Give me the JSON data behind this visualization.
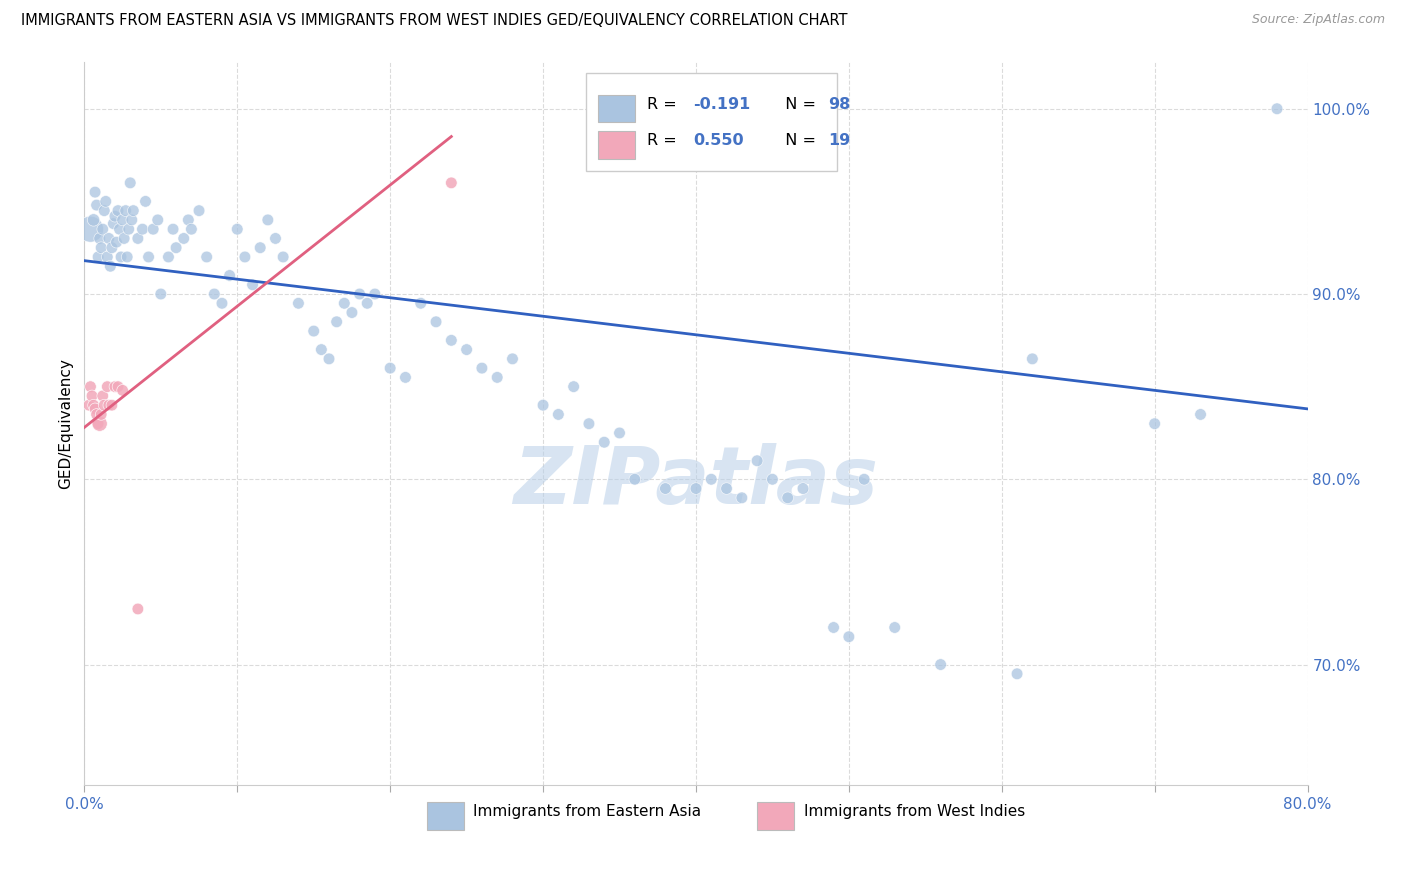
{
  "title": "IMMIGRANTS FROM EASTERN ASIA VS IMMIGRANTS FROM WEST INDIES GED/EQUIVALENCY CORRELATION CHART",
  "source": "Source: ZipAtlas.com",
  "ylabel": "GED/Equivalency",
  "x_min": 0.0,
  "x_max": 0.8,
  "y_min": 0.635,
  "y_max": 1.025,
  "y_ticks": [
    0.7,
    0.8,
    0.9,
    1.0
  ],
  "y_tick_labels": [
    "70.0%",
    "80.0%",
    "90.0%",
    "100.0%"
  ],
  "x_tick_labels_show": [
    "0.0%",
    "80.0%"
  ],
  "legend_r1": "-0.191",
  "legend_n1": "98",
  "legend_r2": "0.550",
  "legend_n2": "19",
  "legend1_label": "Immigrants from Eastern Asia",
  "legend2_label": "Immigrants from West Indies",
  "blue_color": "#aac4e0",
  "pink_color": "#f2a8ba",
  "trend_blue": "#3060c0",
  "trend_pink": "#e06080",
  "watermark": "ZIPatlas",
  "blue_trend_x": [
    0.0,
    0.8
  ],
  "blue_trend_y": [
    0.918,
    0.838
  ],
  "pink_trend_x": [
    0.0,
    0.24
  ],
  "pink_trend_y": [
    0.828,
    0.985
  ],
  "eastern_asia_x": [
    0.004,
    0.006,
    0.007,
    0.008,
    0.009,
    0.01,
    0.011,
    0.012,
    0.013,
    0.014,
    0.015,
    0.016,
    0.017,
    0.018,
    0.019,
    0.02,
    0.021,
    0.022,
    0.023,
    0.024,
    0.025,
    0.026,
    0.027,
    0.028,
    0.029,
    0.03,
    0.031,
    0.032,
    0.035,
    0.038,
    0.04,
    0.042,
    0.045,
    0.048,
    0.05,
    0.055,
    0.058,
    0.06,
    0.065,
    0.068,
    0.07,
    0.075,
    0.08,
    0.085,
    0.09,
    0.095,
    0.1,
    0.105,
    0.11,
    0.115,
    0.12,
    0.125,
    0.13,
    0.14,
    0.15,
    0.155,
    0.16,
    0.165,
    0.17,
    0.175,
    0.18,
    0.185,
    0.19,
    0.2,
    0.21,
    0.22,
    0.23,
    0.24,
    0.25,
    0.26,
    0.27,
    0.28,
    0.3,
    0.31,
    0.32,
    0.33,
    0.34,
    0.35,
    0.36,
    0.38,
    0.4,
    0.41,
    0.42,
    0.43,
    0.44,
    0.45,
    0.46,
    0.47,
    0.49,
    0.5,
    0.51,
    0.53,
    0.56,
    0.61,
    0.62,
    0.7,
    0.73,
    0.78
  ],
  "eastern_asia_y": [
    0.935,
    0.94,
    0.955,
    0.948,
    0.92,
    0.93,
    0.925,
    0.935,
    0.945,
    0.95,
    0.92,
    0.93,
    0.915,
    0.925,
    0.938,
    0.942,
    0.928,
    0.945,
    0.935,
    0.92,
    0.94,
    0.93,
    0.945,
    0.92,
    0.935,
    0.96,
    0.94,
    0.945,
    0.93,
    0.935,
    0.95,
    0.92,
    0.935,
    0.94,
    0.9,
    0.92,
    0.935,
    0.925,
    0.93,
    0.94,
    0.935,
    0.945,
    0.92,
    0.9,
    0.895,
    0.91,
    0.935,
    0.92,
    0.905,
    0.925,
    0.94,
    0.93,
    0.92,
    0.895,
    0.88,
    0.87,
    0.865,
    0.885,
    0.895,
    0.89,
    0.9,
    0.895,
    0.9,
    0.86,
    0.855,
    0.895,
    0.885,
    0.875,
    0.87,
    0.86,
    0.855,
    0.865,
    0.84,
    0.835,
    0.85,
    0.83,
    0.82,
    0.825,
    0.8,
    0.795,
    0.795,
    0.8,
    0.795,
    0.79,
    0.81,
    0.8,
    0.79,
    0.795,
    0.72,
    0.715,
    0.8,
    0.72,
    0.7,
    0.695,
    0.865,
    0.83,
    0.835,
    1.0
  ],
  "eastern_asia_s": [
    350,
    80,
    70,
    70,
    70,
    70,
    70,
    70,
    70,
    70,
    70,
    70,
    70,
    70,
    70,
    70,
    70,
    70,
    70,
    70,
    70,
    70,
    70,
    70,
    70,
    70,
    70,
    70,
    70,
    70,
    70,
    70,
    70,
    70,
    70,
    70,
    70,
    70,
    70,
    70,
    70,
    70,
    70,
    70,
    70,
    70,
    70,
    70,
    70,
    70,
    70,
    70,
    70,
    70,
    70,
    70,
    70,
    70,
    70,
    70,
    70,
    70,
    70,
    70,
    70,
    70,
    70,
    70,
    70,
    70,
    70,
    70,
    70,
    70,
    70,
    70,
    70,
    70,
    70,
    70,
    70,
    70,
    70,
    70,
    70,
    70,
    70,
    70,
    70,
    70,
    70,
    70,
    70,
    70,
    70,
    70,
    70,
    70
  ],
  "west_indies_x": [
    0.003,
    0.004,
    0.005,
    0.006,
    0.007,
    0.008,
    0.009,
    0.01,
    0.011,
    0.012,
    0.013,
    0.015,
    0.016,
    0.018,
    0.02,
    0.022,
    0.025,
    0.035,
    0.24
  ],
  "west_indies_y": [
    0.84,
    0.85,
    0.845,
    0.84,
    0.838,
    0.835,
    0.83,
    0.83,
    0.835,
    0.845,
    0.84,
    0.85,
    0.84,
    0.84,
    0.85,
    0.85,
    0.848,
    0.73,
    0.96
  ],
  "west_indies_s": [
    70,
    70,
    70,
    70,
    70,
    70,
    70,
    120,
    70,
    70,
    70,
    70,
    70,
    70,
    70,
    70,
    70,
    70,
    70
  ]
}
